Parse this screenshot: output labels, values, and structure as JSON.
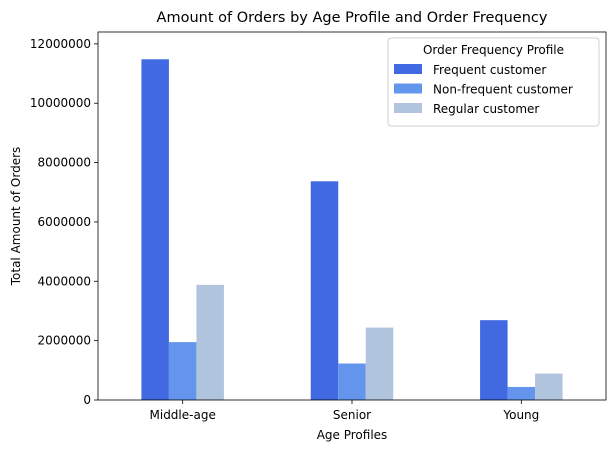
{
  "chart_data": {
    "type": "bar",
    "title": "Amount of Orders by Age Profile and Order Frequency",
    "xlabel": "Age Profiles",
    "ylabel": "Total Amount of Orders",
    "categories": [
      "Middle-age",
      "Senior",
      "Young"
    ],
    "series": [
      {
        "name": "Frequent customer",
        "color": "#4169e1",
        "values": [
          11480000,
          7370000,
          2690000
        ]
      },
      {
        "name": "Non-frequent customer",
        "color": "#6495ed",
        "values": [
          1950000,
          1230000,
          440000
        ]
      },
      {
        "name": "Regular customer",
        "color": "#b0c4de",
        "values": [
          3880000,
          2440000,
          890000
        ]
      }
    ],
    "ylim": [
      0,
      12400000
    ],
    "yticks": [
      0,
      2000000,
      4000000,
      6000000,
      8000000,
      10000000,
      12000000
    ],
    "ytick_labels": [
      "0",
      "2000000",
      "4000000",
      "6000000",
      "8000000",
      "10000000",
      "12000000"
    ],
    "legend": {
      "title": "Order Frequency Profile",
      "position": "top-right"
    },
    "grid": false
  }
}
